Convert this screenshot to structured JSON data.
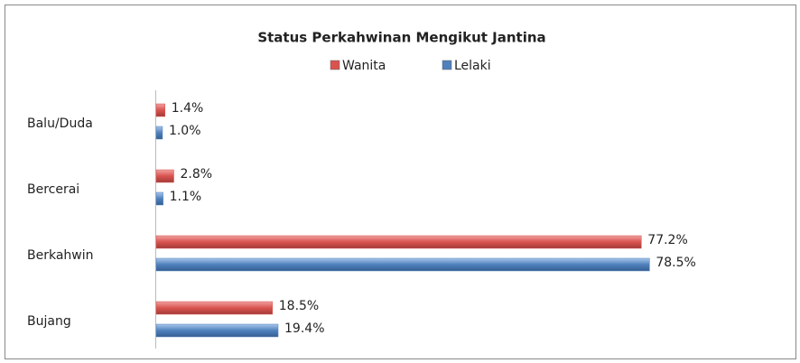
{
  "chart_data": {
    "type": "bar",
    "orientation": "horizontal",
    "title": "Status Perkahwinan Mengikut Jantina",
    "categories": [
      "Balu/Duda",
      "Bercerai",
      "Berkahwin",
      "Bujang"
    ],
    "series": [
      {
        "name": "Wanita",
        "color": "#d9534f",
        "values": [
          1.4,
          2.8,
          77.2,
          18.5
        ],
        "value_labels": [
          "1.4%",
          "2.8%",
          "77.2%",
          "18.5%"
        ]
      },
      {
        "name": "Lelaki",
        "color": "#4f81bd",
        "values": [
          1.0,
          1.1,
          78.5,
          19.4
        ],
        "value_labels": [
          "1.0%",
          "1.1%",
          "78.5%",
          "19.4%"
        ]
      }
    ],
    "legend": "top"
  }
}
